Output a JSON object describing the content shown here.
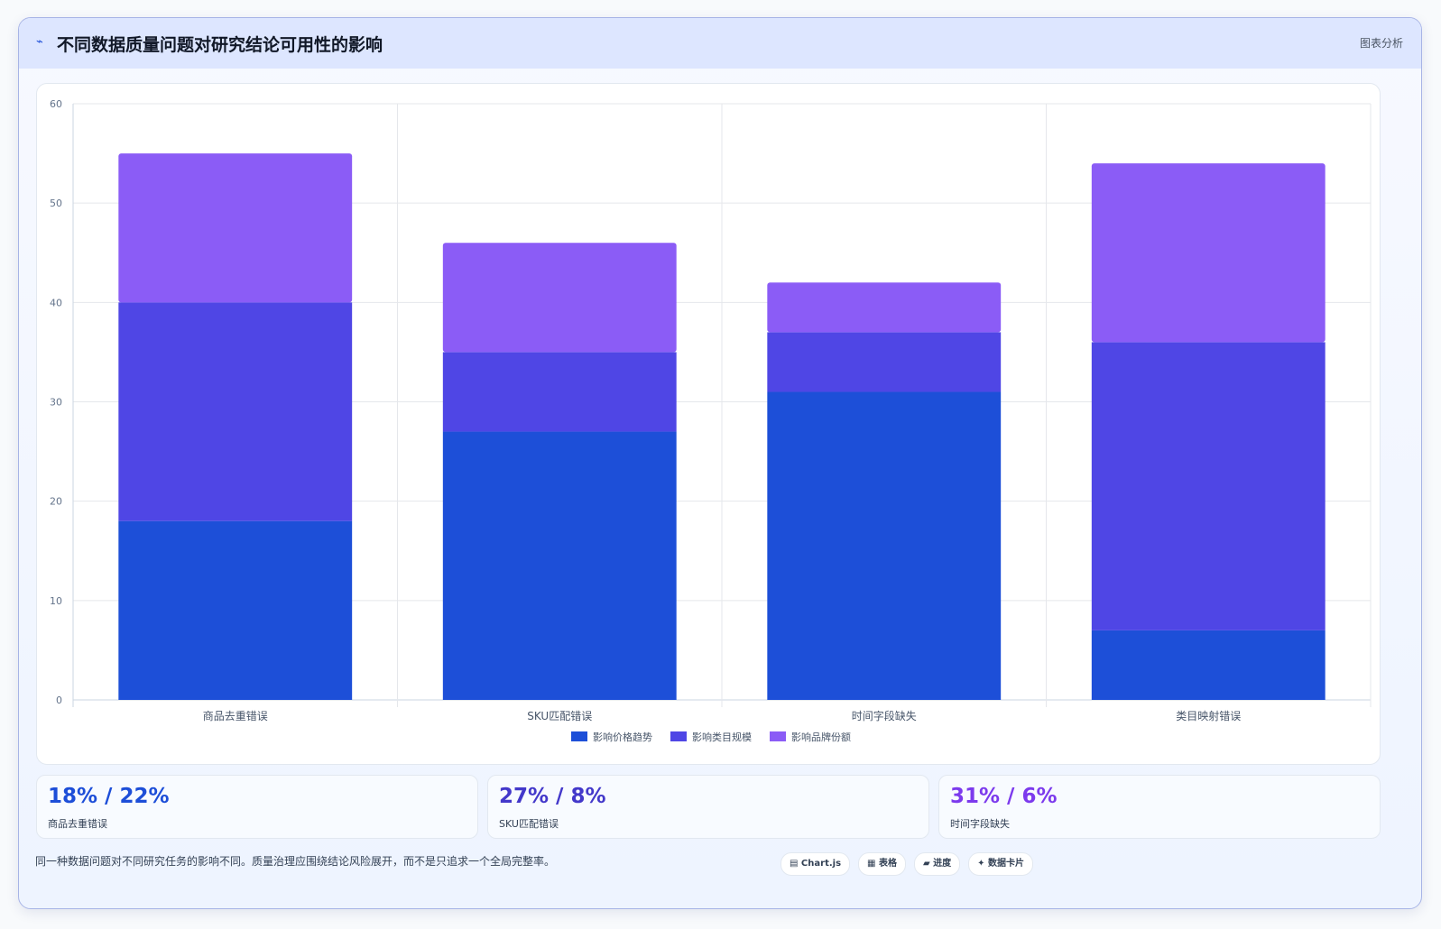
{
  "header": {
    "icon": "⌁",
    "title": "不同数据质量问题对研究结论可用性的影响",
    "tag": "图表分析"
  },
  "chart_data": {
    "type": "bar",
    "stacked": true,
    "categories": [
      "商品去重错误",
      "SKU匹配错误",
      "时间字段缺失",
      "类目映射错误"
    ],
    "series": [
      {
        "name": "影响价格趋势",
        "values": [
          18,
          27,
          31,
          7
        ],
        "color": "#1d4fd8"
      },
      {
        "name": "影响类目规模",
        "values": [
          22,
          8,
          6,
          29
        ],
        "color": "#4f46e5"
      },
      {
        "name": "影响品牌份额",
        "values": [
          15,
          11,
          5,
          18
        ],
        "color": "#8b5cf6"
      }
    ],
    "ylim": [
      0,
      60
    ],
    "yticks": [
      0,
      10,
      20,
      30,
      40,
      50,
      60
    ],
    "grid": true,
    "legend": "bottom-center"
  },
  "stats": [
    {
      "value": "18% / 22%",
      "label": "商品去重错误",
      "color": "#1d4ed8"
    },
    {
      "value": "27% / 8%",
      "label": "SKU匹配错误",
      "color": "#4338ca"
    },
    {
      "value": "31% / 6%",
      "label": "时间字段缺失",
      "color": "#7c3aed"
    }
  ],
  "footnote": "同一种数据问题对不同研究任务的影响不同。质量治理应围绕结论风险展开，而不是只追求一个全局完整率。",
  "chips": [
    "▤ Chart.js",
    "▦ 表格",
    "▰ 进度",
    "✦ 数据卡片"
  ]
}
